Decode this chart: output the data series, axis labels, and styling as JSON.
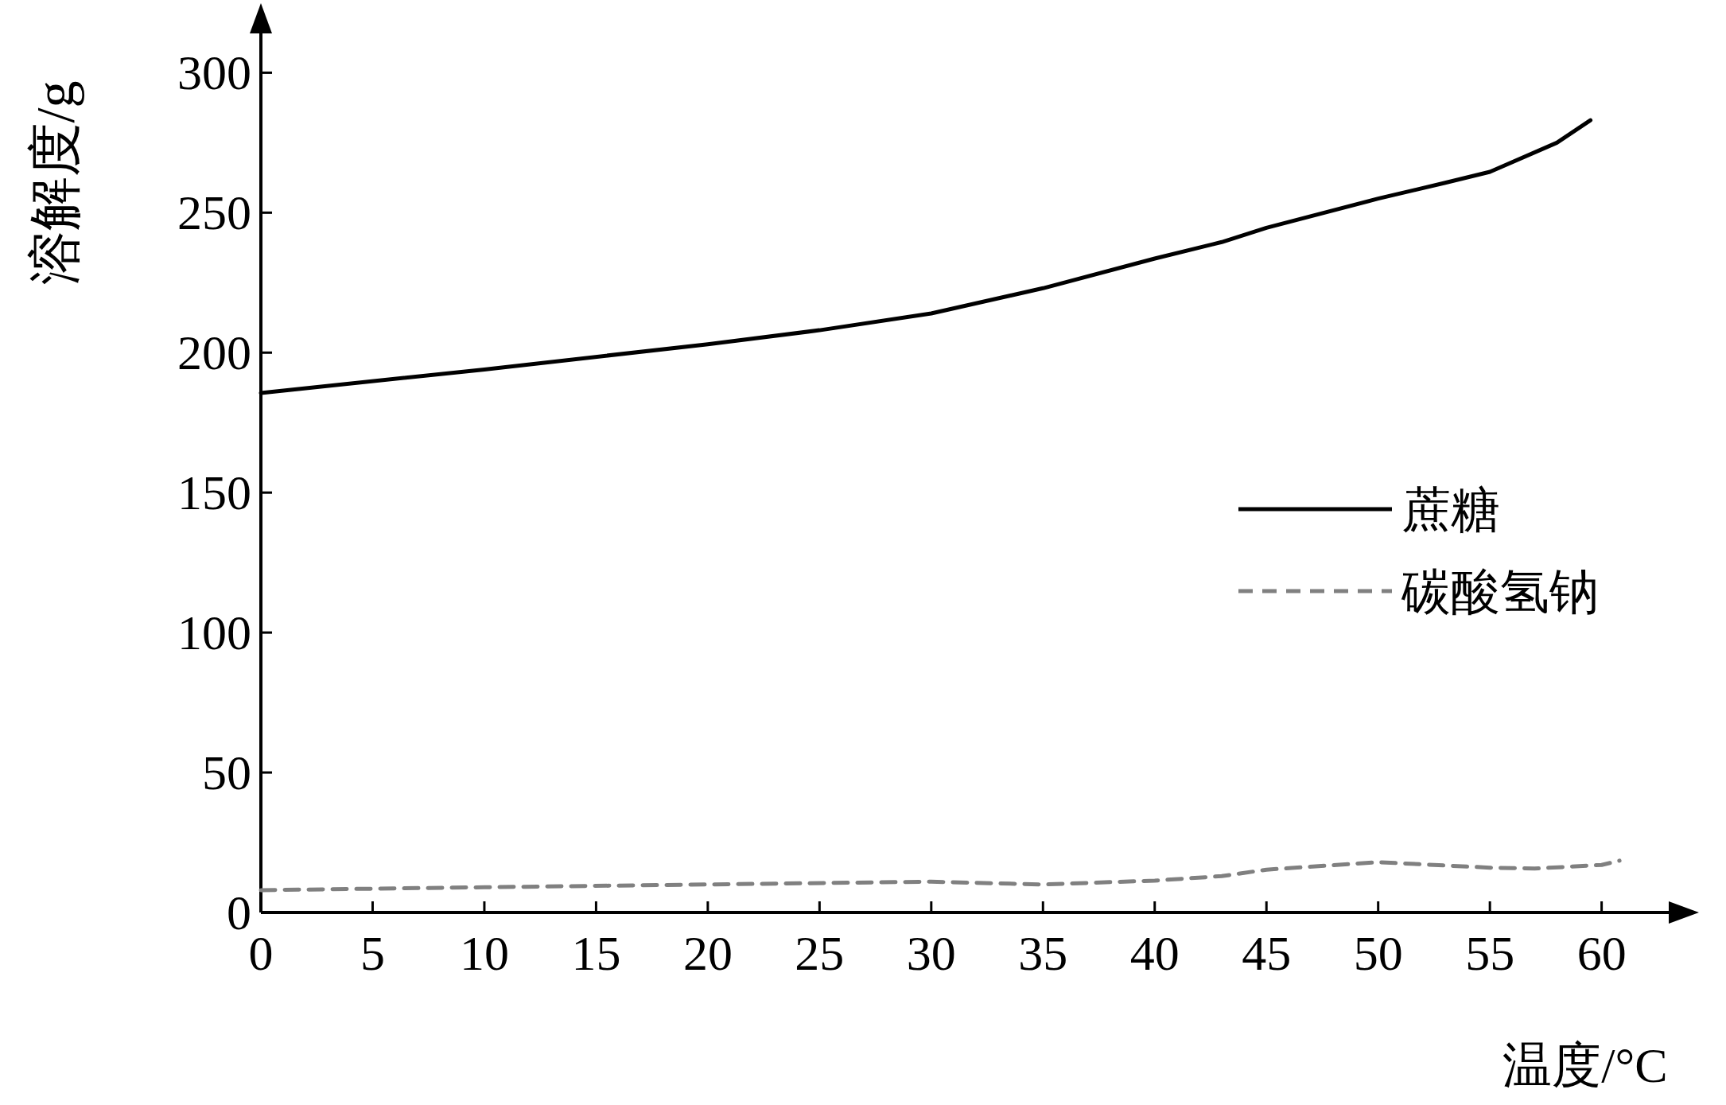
{
  "chart_data": {
    "type": "line",
    "xlabel": "温度/°C",
    "ylabel": "溶解度/g",
    "xlim": [
      0,
      64
    ],
    "ylim": [
      0,
      322
    ],
    "xticks": [
      0,
      5,
      10,
      15,
      20,
      25,
      30,
      35,
      40,
      45,
      50,
      55,
      60
    ],
    "yticks": [
      0,
      50,
      100,
      150,
      200,
      250,
      300
    ],
    "grid": false,
    "legend": "right",
    "marker": "none",
    "series": [
      {
        "name": "蔗糖",
        "color": "#000000",
        "line_style": "solid",
        "x": [
          0,
          10,
          20,
          25,
          30,
          35,
          40,
          43,
          45,
          50,
          53,
          55,
          58,
          59.5
        ],
        "values": [
          185.6,
          194,
          203,
          208,
          214,
          223,
          233.6,
          239.5,
          244.6,
          255,
          260.7,
          264.6,
          275,
          283
        ]
      },
      {
        "name": "碳酸氢钠",
        "color": "#808080",
        "line_style": "dashed",
        "x": [
          0,
          10,
          20,
          30,
          35,
          40,
          43,
          45,
          50,
          55,
          57,
          60,
          60.8
        ],
        "values": [
          8,
          9,
          10,
          11,
          10,
          11.4,
          13,
          15.3,
          18,
          16,
          15.7,
          17,
          18.5
        ]
      }
    ]
  }
}
